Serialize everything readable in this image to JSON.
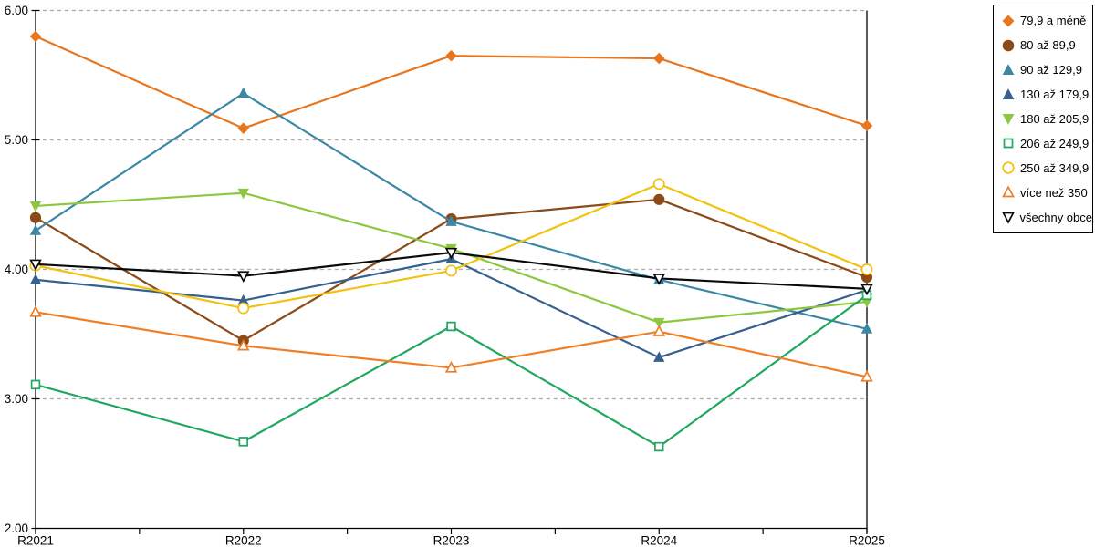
{
  "chart_data": {
    "type": "line",
    "title": "",
    "xlabel": "",
    "ylabel": "",
    "categories": [
      "R2021",
      "R2022",
      "R2023",
      "R2024",
      "R2025"
    ],
    "ylim": [
      2,
      6
    ],
    "yticks": [
      "6.00",
      "5.00",
      "4.00",
      "3.00",
      "2.00"
    ],
    "grid": "horizontal-dashed",
    "legend_position": "top-right",
    "series": [
      {
        "name": "79,9 a méně",
        "marker": "diamond",
        "filled": true,
        "color": "#E8761E",
        "values": [
          5.8,
          5.09,
          5.65,
          5.63,
          5.11
        ]
      },
      {
        "name": "80 až 89,9",
        "marker": "circle",
        "filled": true,
        "color": "#8B4A17",
        "values": [
          4.4,
          3.45,
          4.39,
          4.54,
          3.94
        ]
      },
      {
        "name": "90 až 129,9",
        "marker": "triangle-up",
        "filled": true,
        "color": "#3C87A4",
        "values": [
          4.3,
          5.36,
          4.37,
          3.92,
          3.54
        ]
      },
      {
        "name": "130 až 179,9",
        "marker": "triangle-up",
        "filled": true,
        "color": "#36618F",
        "values": [
          3.92,
          3.76,
          4.08,
          3.32,
          3.84
        ]
      },
      {
        "name": "180 až 205,9",
        "marker": "triangle-down",
        "filled": true,
        "color": "#8DC63F",
        "values": [
          4.49,
          4.59,
          4.16,
          3.59,
          3.75
        ]
      },
      {
        "name": "206 až 249,9",
        "marker": "square",
        "filled": false,
        "color": "#21A85F",
        "values": [
          3.11,
          2.67,
          3.56,
          2.63,
          3.8
        ]
      },
      {
        "name": "250 až 349,9",
        "marker": "circle",
        "filled": false,
        "color": "#F2C20F",
        "values": [
          4.03,
          3.7,
          3.99,
          4.66,
          4.0
        ]
      },
      {
        "name": "více než 350",
        "marker": "triangle-up",
        "filled": false,
        "color": "#F07E27",
        "values": [
          3.67,
          3.41,
          3.24,
          3.52,
          3.17
        ]
      },
      {
        "name": "všechny obce",
        "marker": "triangle-down",
        "filled": false,
        "color": "#0A0A0A",
        "values": [
          4.04,
          3.95,
          4.13,
          3.93,
          3.85
        ]
      }
    ],
    "colors": {
      "axis": "#000000",
      "gridline": "#ABABAB",
      "background": "#FFFFFF"
    }
  }
}
